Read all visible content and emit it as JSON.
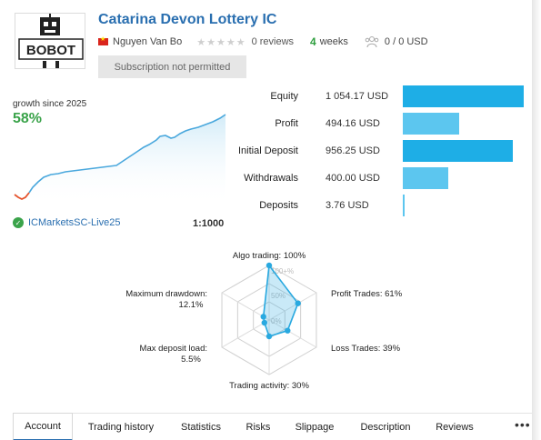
{
  "header": {
    "title": "Catarina Devon Lottery IC",
    "author": "Nguyen Van Bo",
    "stars": "★★★★★",
    "reviews": "0 reviews",
    "weeks_number": "4",
    "weeks_label": "weeks",
    "subscribers": "0 / 0 USD",
    "subscribe_button": "Subscription not permitted",
    "logo_text": "BOBOT"
  },
  "growth": {
    "label": "growth since 2025",
    "value": "58%"
  },
  "account": {
    "broker": "ICMarketsSC-Live25",
    "leverage": "1:1000"
  },
  "stats": [
    {
      "label": "Equity",
      "value": "1 054.17 USD",
      "amount": 1054.17,
      "color": "#1eaee6"
    },
    {
      "label": "Profit",
      "value": "494.16 USD",
      "amount": 494.16,
      "color": "#5cc6ef"
    },
    {
      "label": "Initial Deposit",
      "value": "956.25 USD",
      "amount": 956.25,
      "color": "#1eaee6"
    },
    {
      "label": "Withdrawals",
      "value": "400.00 USD",
      "amount": 400.0,
      "color": "#5cc6ef"
    },
    {
      "label": "Deposits",
      "value": "3.76 USD",
      "amount": 3.76,
      "color": "#5cc6ef"
    }
  ],
  "radar": {
    "axes": [
      {
        "label": "Algo trading: 100%",
        "value": 100
      },
      {
        "label": "Profit Trades: 61%",
        "value": 61
      },
      {
        "label": "Loss Trades: 39%",
        "value": 39
      },
      {
        "label": "Trading activity: 30%",
        "value": 30
      },
      {
        "label": "Max deposit load:",
        "sub": "5.5%",
        "value": 5.5
      },
      {
        "label": "Maximum drawdown:",
        "sub": "12.1%",
        "value": 12.1
      }
    ],
    "ring_labels": [
      "100+%",
      "50%",
      "0%"
    ]
  },
  "tabs": [
    "Account",
    "Trading history",
    "Statistics",
    "Risks",
    "Slippage",
    "Description",
    "Reviews"
  ],
  "more": "•••",
  "colors": {
    "title": "#2a6fb0",
    "growth": "#3aa34a",
    "bar": "#1eaee6",
    "radar": "#29a9e0"
  }
}
